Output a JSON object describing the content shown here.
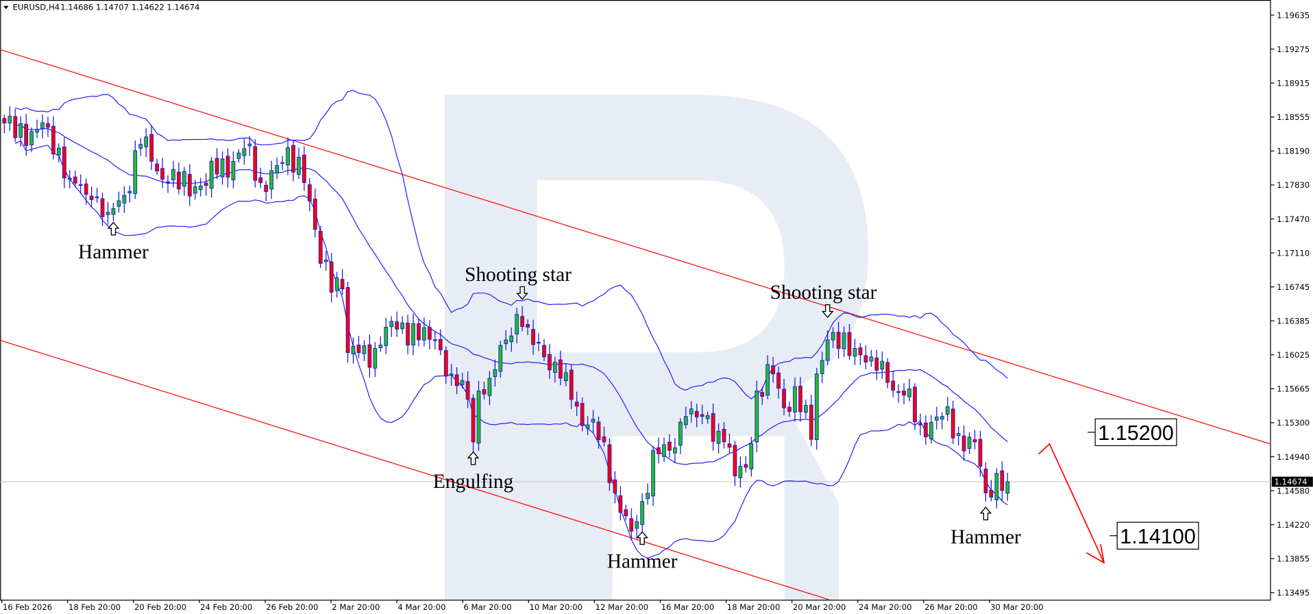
{
  "header": {
    "symbol": "EURUSD,H4",
    "ohlc": "1.14686 1.14707 1.14622 1.14674"
  },
  "colors": {
    "bull": "#22c022",
    "bear": "#ff0000",
    "outline": "#1010e0",
    "bands": "#2020ff",
    "channel": "#ff0000",
    "watermark": "#e8edf5",
    "current_line": "#c0c0c0"
  },
  "chart_data": {
    "type": "candlestick",
    "symbol": "EURUSD",
    "timeframe": "H4",
    "y_ticks": [
      "1.19635",
      "1.19275",
      "1.18915",
      "1.18555",
      "1.18190",
      "1.17830",
      "1.17470",
      "1.17110",
      "1.16745",
      "1.16385",
      "1.16025",
      "1.15665",
      "1.15300",
      "1.14940",
      "1.14580",
      "1.14220",
      "1.13855",
      "1.13495"
    ],
    "ylim": [
      1.13495,
      1.19635
    ],
    "x_ticks": [
      "16 Feb 2026",
      "18 Feb 20:00",
      "20 Feb 20:00",
      "24 Feb 20:00",
      "26 Feb 20:00",
      "2 Mar 20:00",
      "4 Mar 20:00",
      "6 Mar 20:00",
      "10 Mar 20:00",
      "12 Mar 20:00",
      "16 Mar 20:00",
      "18 Mar 20:00",
      "20 Mar 20:00",
      "24 Mar 20:00",
      "26 Mar 20:00",
      "30 Mar 20:00"
    ],
    "current_price": "1.14674",
    "close_path": [
      [
        0,
        1.18487
      ],
      [
        5,
        1.18397
      ],
      [
        8,
        1.18442
      ],
      [
        12,
        1.17899
      ],
      [
        16,
        1.17673
      ],
      [
        19,
        1.17538
      ],
      [
        22,
        1.17719
      ],
      [
        25,
        1.18261
      ],
      [
        27,
        1.1808
      ],
      [
        30,
        1.17854
      ],
      [
        35,
        1.17809
      ],
      [
        39,
        1.17945
      ],
      [
        44,
        1.18216
      ],
      [
        47,
        1.17854
      ],
      [
        50,
        1.18035
      ],
      [
        54,
        1.18125
      ],
      [
        55,
        1.17854
      ],
      [
        57,
        1.17357
      ],
      [
        58,
        1.16995
      ],
      [
        62,
        1.16724
      ],
      [
        63,
        1.16046
      ],
      [
        65,
        1.16046
      ],
      [
        68,
        1.16091
      ],
      [
        70,
        1.16317
      ],
      [
        73,
        1.16363
      ],
      [
        76,
        1.16182
      ],
      [
        79,
        1.16182
      ],
      [
        82,
        1.1582
      ],
      [
        85,
        1.15549
      ],
      [
        86,
        1.15097
      ],
      [
        87,
        1.15639
      ],
      [
        89,
        1.15775
      ],
      [
        92,
        1.16182
      ],
      [
        94,
        1.16453
      ],
      [
        96,
        1.16317
      ],
      [
        99,
        1.16001
      ],
      [
        102,
        1.15775
      ],
      [
        104,
        1.15549
      ],
      [
        107,
        1.15278
      ],
      [
        110,
        1.15097
      ],
      [
        112,
        1.14555
      ],
      [
        115,
        1.14148
      ],
      [
        117,
        1.14464
      ],
      [
        119,
        1.15007
      ],
      [
        122,
        1.15007
      ],
      [
        125,
        1.15368
      ],
      [
        128,
        1.15368
      ],
      [
        132,
        1.15097
      ],
      [
        134,
        1.14735
      ],
      [
        136,
        1.14826
      ],
      [
        138,
        1.15639
      ],
      [
        141,
        1.1582
      ],
      [
        143,
        1.15459
      ],
      [
        145,
        1.15685
      ],
      [
        148,
        1.15124
      ],
      [
        149,
        1.1582
      ],
      [
        151,
        1.16182
      ],
      [
        153,
        1.16091
      ],
      [
        156,
        1.16091
      ],
      [
        159,
        1.16001
      ],
      [
        162,
        1.1573
      ],
      [
        165,
        1.15594
      ],
      [
        168,
        1.15278
      ],
      [
        172,
        1.15368
      ],
      [
        175,
        1.15187
      ],
      [
        178,
        1.15097
      ],
      [
        180,
        1.14555
      ],
      [
        182,
        1.14762
      ],
      [
        184,
        1.14674
      ]
    ],
    "indicators": {
      "bollinger_bands": {
        "period": 20,
        "deviations": 2
      }
    },
    "channel": {
      "upper": [
        [
          0,
          1.19255
        ],
        [
          232,
          1.15079
        ]
      ],
      "lower": [
        [
          0,
          1.16164
        ],
        [
          156,
          1.13334
        ]
      ]
    },
    "annotations": [
      {
        "text": "Hammer",
        "bar": 20,
        "arrow": "up"
      },
      {
        "text": "Shooting star",
        "bar": 95,
        "arrow": "down"
      },
      {
        "text": "Engulfing",
        "bar": 86,
        "arrow": "up"
      },
      {
        "text": "Hammer",
        "bar": 117,
        "arrow": "up"
      },
      {
        "text": "Shooting star",
        "bar": 151,
        "arrow": "down"
      },
      {
        "text": "Hammer",
        "bar": 180,
        "arrow": "up"
      }
    ],
    "levels": [
      {
        "label": "1.15200",
        "price": 1.152
      },
      {
        "label": "1.14100",
        "price": 1.141
      }
    ],
    "forecast_arrow": {
      "direction": "down",
      "from": 1.152,
      "to": 1.14
    }
  }
}
